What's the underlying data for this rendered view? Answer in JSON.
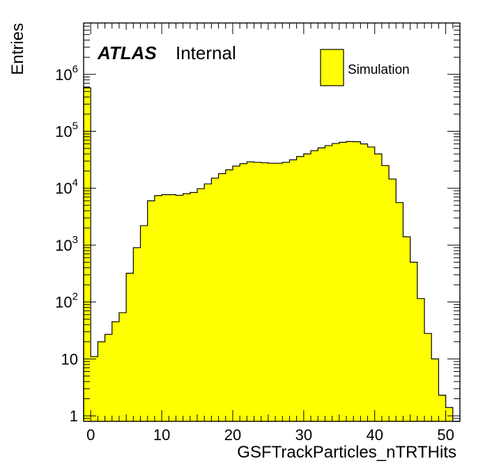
{
  "chart_data": {
    "type": "bar",
    "xlabel": "GSFTrackParticles_nTRTHits",
    "ylabel": "Entries",
    "x_range": [
      -1,
      52
    ],
    "y_log": true,
    "ylim": [
      0.8,
      8000000
    ],
    "bin_edges_start": -1,
    "bin_width": 1,
    "values": [
      580000,
      11,
      20,
      27,
      45,
      65,
      320,
      900,
      2200,
      6000,
      7400,
      7700,
      7700,
      7500,
      8000,
      8400,
      9800,
      11900,
      15000,
      18000,
      21000,
      24500,
      27000,
      29000,
      28500,
      28000,
      27500,
      27500,
      28500,
      31500,
      36000,
      40000,
      45500,
      51000,
      56000,
      61000,
      64000,
      66000,
      65500,
      60000,
      53000,
      40000,
      25000,
      14500,
      5600,
      1400,
      500,
      115,
      28,
      10,
      2.3,
      1.4,
      0
    ],
    "fill_color": "#ffff00",
    "line_color": "#000000",
    "xticks": [
      "0",
      "10",
      "20",
      "30",
      "40",
      "50"
    ],
    "yticks": [
      {
        "base": "1",
        "exp": ""
      },
      {
        "base": "10",
        "exp": ""
      },
      {
        "base": "10",
        "exp": "2"
      },
      {
        "base": "10",
        "exp": "3"
      },
      {
        "base": "10",
        "exp": "4"
      },
      {
        "base": "10",
        "exp": "5"
      },
      {
        "base": "10",
        "exp": "6"
      }
    ],
    "annotations": {
      "experiment": "ATLAS",
      "status": "Internal"
    },
    "legend": {
      "label": "Simulation",
      "placement": "top-right"
    }
  }
}
